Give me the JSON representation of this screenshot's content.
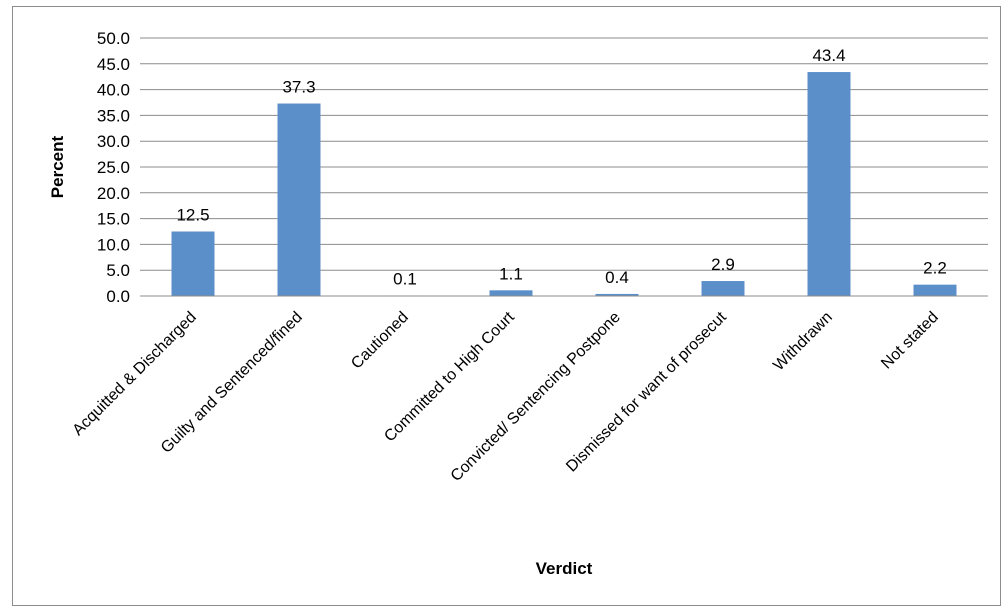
{
  "chart_data": {
    "type": "bar",
    "title": "",
    "xlabel": "Verdict",
    "ylabel": "Percent",
    "ylim": [
      0,
      50
    ],
    "yticks": [
      "0.0",
      "5.0",
      "10.0",
      "15.0",
      "20.0",
      "25.0",
      "30.0",
      "35.0",
      "40.0",
      "45.0",
      "50.0"
    ],
    "grid": true,
    "legend": "none",
    "bar_color": "#5b8fc9",
    "grid_color": "#8c8c8c",
    "categories": [
      "Acquitted & Discharged",
      "Guilty and Sentenced/fined",
      "Cautioned",
      "Committed to High Court",
      "Convicted/ Sentencing Postpone",
      "Dismissed for want of prosecut",
      "Withdrawn",
      "Not stated"
    ],
    "values": [
      12.5,
      37.3,
      0.1,
      1.1,
      0.4,
      2.9,
      43.4,
      2.2
    ],
    "value_labels": [
      "12.5",
      "37.3",
      "0.1",
      "1.1",
      "0.4",
      "2.9",
      "43.4",
      "2.2"
    ]
  }
}
